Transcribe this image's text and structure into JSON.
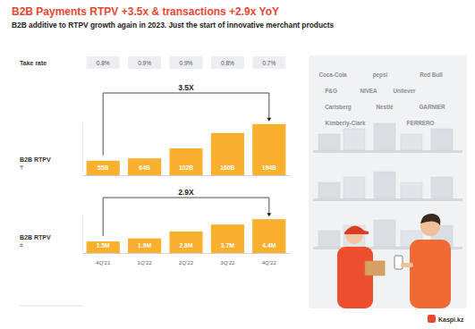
{
  "header": {
    "title": "B2B Payments RTPV +3.5x & transactions +2.9x YoY",
    "subtitle": "B2B additive to RTPV growth again in 2023. Just the start of innovative merchant products"
  },
  "take_rate": {
    "label": "Take rate",
    "values": [
      "0.8%",
      "0.9%",
      "0.9%",
      "0.8%",
      "0.7%"
    ]
  },
  "chart_data": [
    {
      "type": "bar",
      "ylabel": "B2B RTPV",
      "unit": "₸",
      "annotation": "3.5X",
      "categories": [
        null,
        null,
        null,
        null,
        null
      ],
      "values": [
        55,
        64,
        102,
        160,
        194
      ],
      "value_labels": [
        "55B",
        "64B",
        "102B",
        "160B",
        "194B"
      ],
      "color": "#f9b02d",
      "ylim": [
        0,
        200
      ],
      "data_labels": true,
      "tick_labels": false
    },
    {
      "type": "bar",
      "ylabel": "B2B RTPV",
      "unit": "#",
      "annotation": "2.9X",
      "categories": [
        "4Q'21",
        "1Q'22",
        "2Q'22",
        "3Q'22",
        "4Q'22"
      ],
      "values": [
        1.5,
        1.9,
        2.8,
        3.7,
        4.4
      ],
      "value_labels": [
        "1.5M",
        "1.9M",
        "2.8M",
        "3.7M",
        "4.4M"
      ],
      "color": "#f9b02d",
      "ylim": [
        0,
        5
      ],
      "data_labels": true,
      "tick_labels": "x"
    }
  ],
  "brands": [
    "Coca-Cola",
    "pepsi",
    "Red Bull",
    "P&G",
    "NIVEA",
    "Unilever",
    "Carlsberg",
    "Nestlé",
    "GARNIER",
    "Kimberly-Clark",
    "FERRERO"
  ],
  "logo": "Kaspi.kz"
}
